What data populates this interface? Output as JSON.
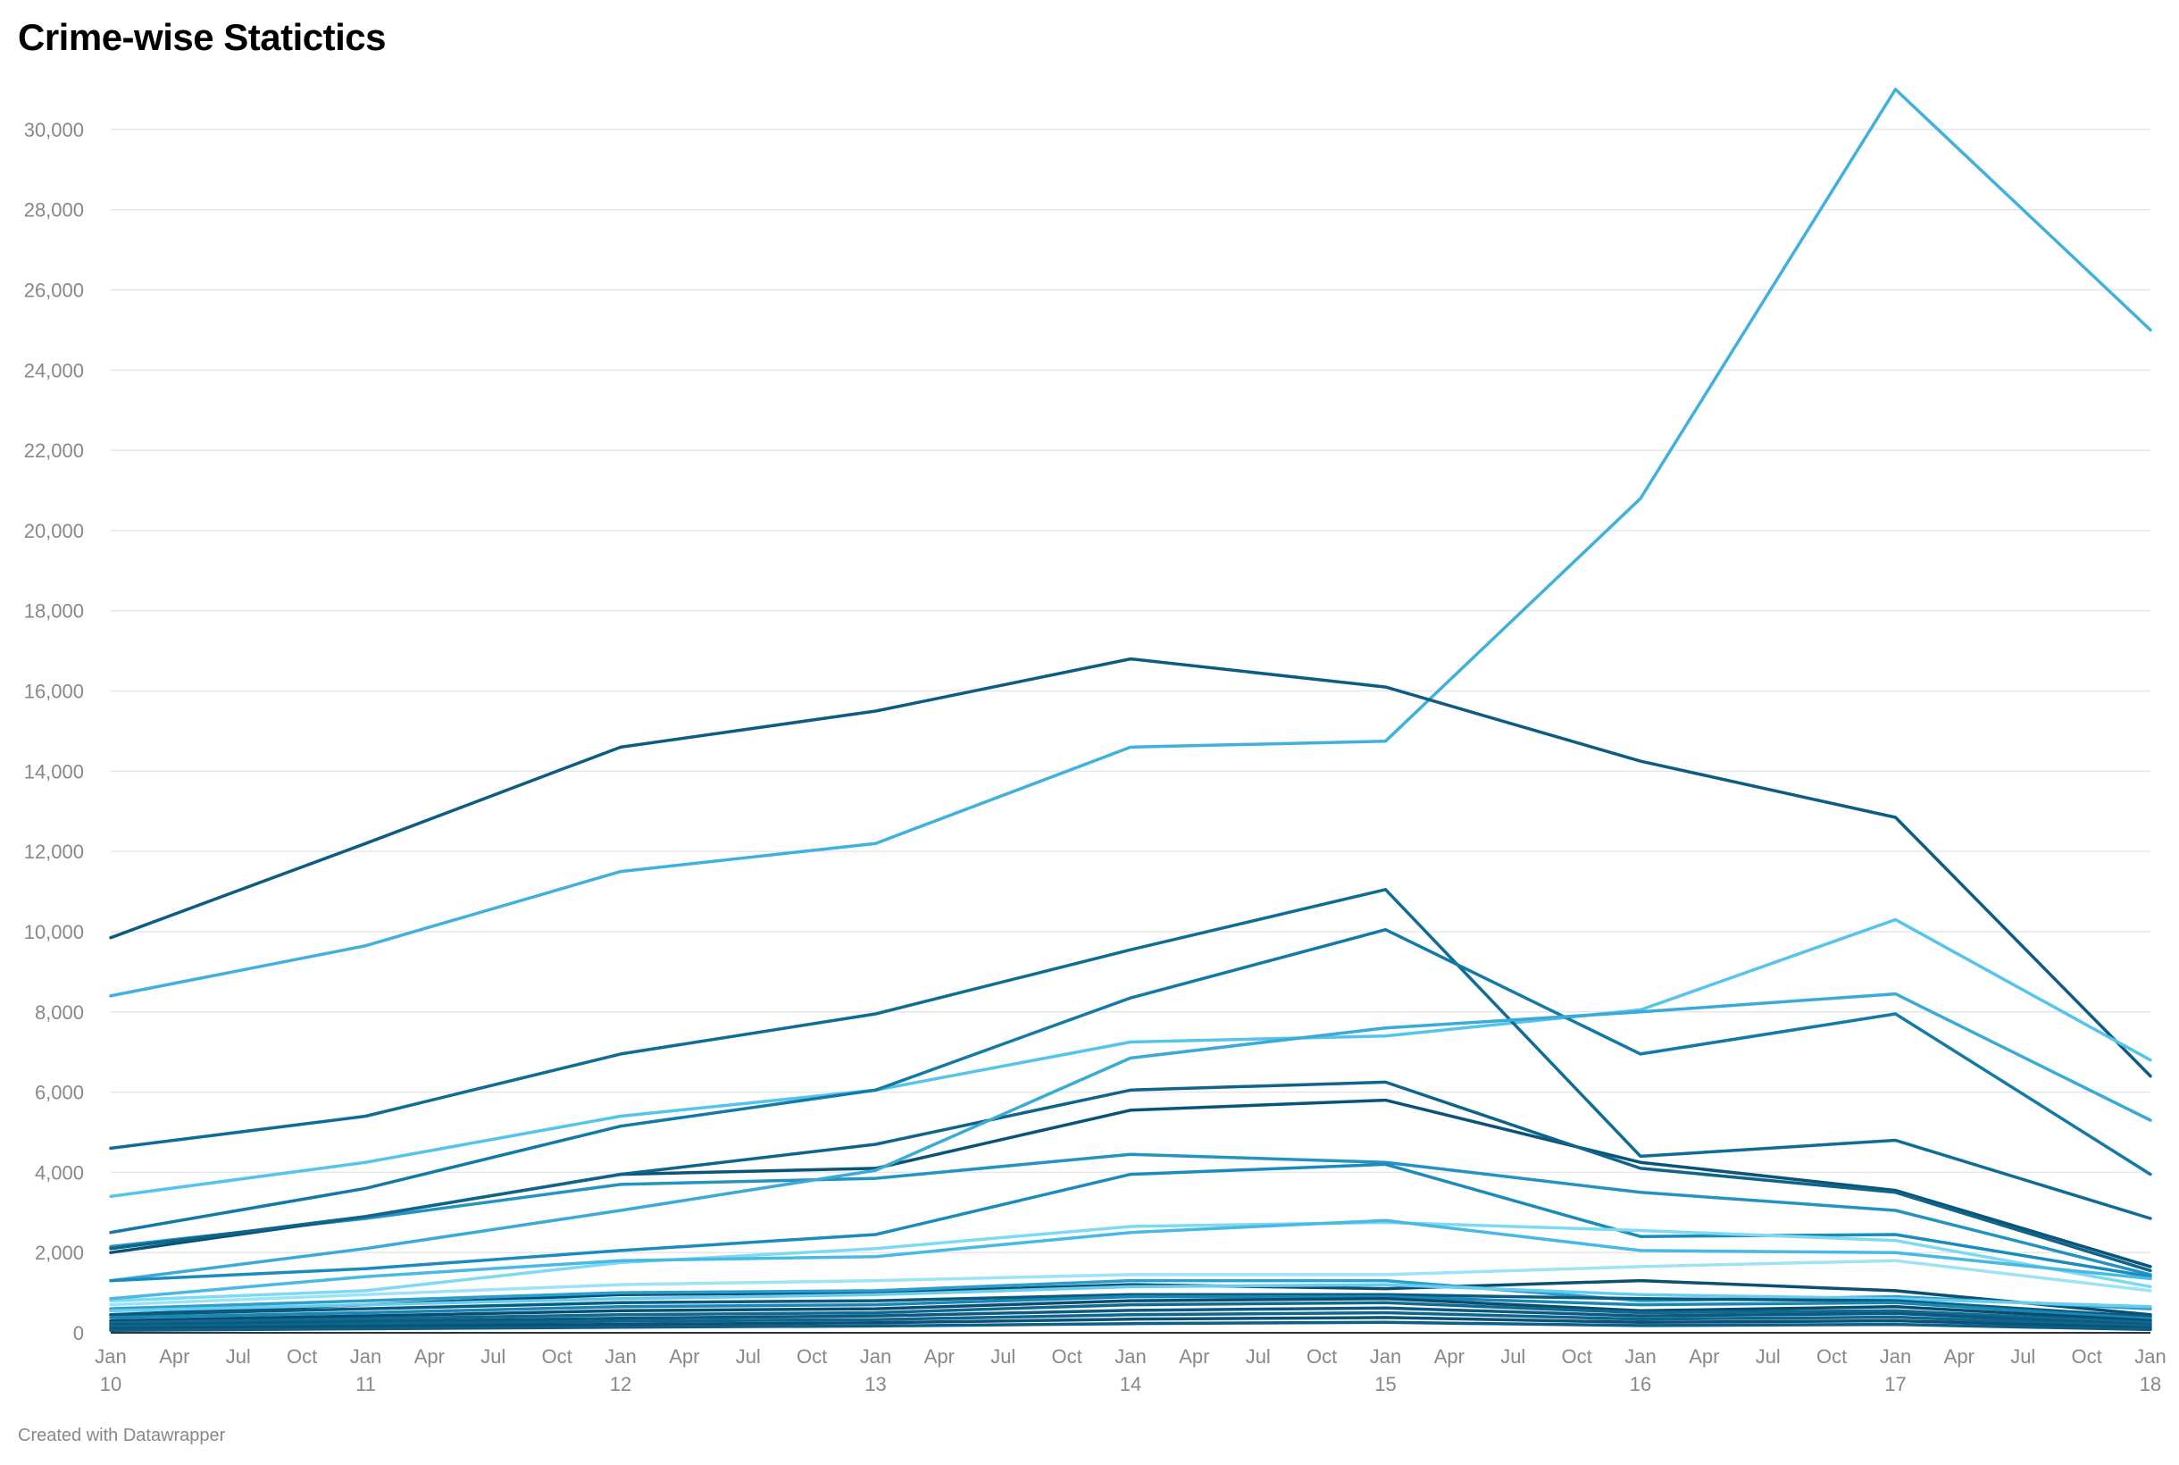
{
  "title": "Crime-wise Statictics",
  "footer": "Created with Datawrapper",
  "chart_data": {
    "type": "line",
    "title": "Crime-wise Statictics",
    "xlabel": "",
    "ylabel": "",
    "x": [
      "2010-01",
      "2011-01",
      "2012-01",
      "2013-01",
      "2014-01",
      "2015-01",
      "2016-01",
      "2017-01",
      "2018-01"
    ],
    "xlim": [
      "2010-01",
      "2018-01"
    ],
    "ylim": [
      0,
      31000
    ],
    "y_ticks": [
      0,
      2000,
      4000,
      6000,
      8000,
      10000,
      12000,
      14000,
      16000,
      18000,
      20000,
      22000,
      24000,
      26000,
      28000,
      30000
    ],
    "y_tick_labels": [
      "0",
      "2,000",
      "4,000",
      "6,000",
      "8,000",
      "10,000",
      "12,000",
      "14,000",
      "16,000",
      "18,000",
      "20,000",
      "22,000",
      "24,000",
      "26,000",
      "28,000",
      "30,000"
    ],
    "x_ticks": [
      {
        "month": "Jan",
        "year": "10"
      },
      {
        "month": "Apr",
        "year": ""
      },
      {
        "month": "Jul",
        "year": ""
      },
      {
        "month": "Oct",
        "year": ""
      },
      {
        "month": "Jan",
        "year": "11"
      },
      {
        "month": "Apr",
        "year": ""
      },
      {
        "month": "Jul",
        "year": ""
      },
      {
        "month": "Oct",
        "year": ""
      },
      {
        "month": "Jan",
        "year": "12"
      },
      {
        "month": "Apr",
        "year": ""
      },
      {
        "month": "Jul",
        "year": ""
      },
      {
        "month": "Oct",
        "year": ""
      },
      {
        "month": "Jan",
        "year": "13"
      },
      {
        "month": "Apr",
        "year": ""
      },
      {
        "month": "Jul",
        "year": ""
      },
      {
        "month": "Oct",
        "year": ""
      },
      {
        "month": "Jan",
        "year": "14"
      },
      {
        "month": "Apr",
        "year": ""
      },
      {
        "month": "Jul",
        "year": ""
      },
      {
        "month": "Oct",
        "year": ""
      },
      {
        "month": "Jan",
        "year": "15"
      },
      {
        "month": "Apr",
        "year": ""
      },
      {
        "month": "Jul",
        "year": ""
      },
      {
        "month": "Oct",
        "year": ""
      },
      {
        "month": "Jan",
        "year": "16"
      },
      {
        "month": "Apr",
        "year": ""
      },
      {
        "month": "Jul",
        "year": ""
      },
      {
        "month": "Oct",
        "year": ""
      },
      {
        "month": "Jan",
        "year": "17"
      },
      {
        "month": "Apr",
        "year": ""
      },
      {
        "month": "Jul",
        "year": ""
      },
      {
        "month": "Oct",
        "year": ""
      },
      {
        "month": "Jan",
        "year": "18"
      }
    ],
    "grid": true,
    "legend": "none",
    "series": [
      {
        "color": "#3fb1dc",
        "values": [
          8400,
          9650,
          11500,
          12200,
          14600,
          14750,
          20800,
          31000,
          25000
        ]
      },
      {
        "color": "#0d5c82",
        "values": [
          9850,
          12200,
          14600,
          15500,
          16800,
          16100,
          14250,
          12850,
          6400
        ]
      },
      {
        "color": "#55c4ea",
        "values": [
          3400,
          4250,
          5400,
          6050,
          7250,
          7400,
          8050,
          10300,
          6800
        ]
      },
      {
        "color": "#0f6c94",
        "values": [
          4600,
          5400,
          6950,
          7950,
          9550,
          11050,
          4400,
          4800,
          2850
        ]
      },
      {
        "color": "#2493c0",
        "values": [
          2150,
          2850,
          3700,
          3850,
          4450,
          4250,
          3500,
          3050,
          1450
        ]
      },
      {
        "color": "#137aa6",
        "values": [
          2500,
          3600,
          5150,
          6050,
          8350,
          10050,
          6950,
          7950,
          3950
        ]
      },
      {
        "color": "#0a5478",
        "values": [
          2000,
          2900,
          3950,
          4100,
          5550,
          5800,
          4250,
          3550,
          1650
        ]
      },
      {
        "color": "#0e6489",
        "values": [
          2100,
          2900,
          3950,
          4700,
          6050,
          6250,
          4100,
          3500,
          1550
        ]
      },
      {
        "color": "#3aaad6",
        "values": [
          1300,
          2100,
          3050,
          4050,
          6850,
          7600,
          8000,
          8450,
          5300
        ]
      },
      {
        "color": "#1a8cbb",
        "values": [
          1300,
          1600,
          2050,
          2450,
          3950,
          4200,
          2400,
          2450,
          1400
        ]
      },
      {
        "color": "#7ed9f2",
        "values": [
          800,
          1050,
          1750,
          2100,
          2650,
          2750,
          2550,
          2300,
          1150
        ]
      },
      {
        "color": "#48b9e2",
        "values": [
          850,
          1400,
          1800,
          1900,
          2500,
          2800,
          2050,
          2000,
          1350
        ]
      },
      {
        "color": "#9ce3f6",
        "values": [
          700,
          950,
          1200,
          1300,
          1450,
          1450,
          1650,
          1800,
          1050
        ]
      },
      {
        "color": "#0b4f72",
        "values": [
          450,
          700,
          950,
          1000,
          1200,
          1100,
          1300,
          1050,
          450
        ]
      },
      {
        "color": "#2a9fcd",
        "values": [
          600,
          800,
          1000,
          1050,
          1300,
          1300,
          800,
          900,
          600
        ]
      },
      {
        "color": "#67cdef",
        "values": [
          550,
          700,
          850,
          950,
          1150,
          1200,
          950,
          850,
          650
        ]
      },
      {
        "color": "#0b5b80",
        "values": [
          450,
          600,
          750,
          800,
          950,
          950,
          850,
          800,
          400
        ]
      },
      {
        "color": "#1787b5",
        "values": [
          380,
          500,
          650,
          700,
          900,
          900,
          700,
          750,
          350
        ]
      },
      {
        "color": "#0a4d6f",
        "values": [
          300,
          420,
          550,
          600,
          800,
          850,
          550,
          650,
          300
        ]
      },
      {
        "color": "#0f6a92",
        "values": [
          250,
          350,
          450,
          500,
          700,
          750,
          500,
          550,
          250
        ]
      },
      {
        "color": "#0c5a7e",
        "values": [
          200,
          280,
          360,
          420,
          560,
          620,
          420,
          480,
          200
        ]
      },
      {
        "color": "#0e6590",
        "values": [
          150,
          220,
          290,
          330,
          450,
          500,
          340,
          390,
          160
        ]
      },
      {
        "color": "#0b5275",
        "values": [
          100,
          160,
          210,
          250,
          340,
          380,
          260,
          300,
          120
        ]
      },
      {
        "color": "#0d5f86",
        "values": [
          60,
          100,
          140,
          170,
          230,
          260,
          180,
          210,
          80
        ]
      }
    ]
  }
}
